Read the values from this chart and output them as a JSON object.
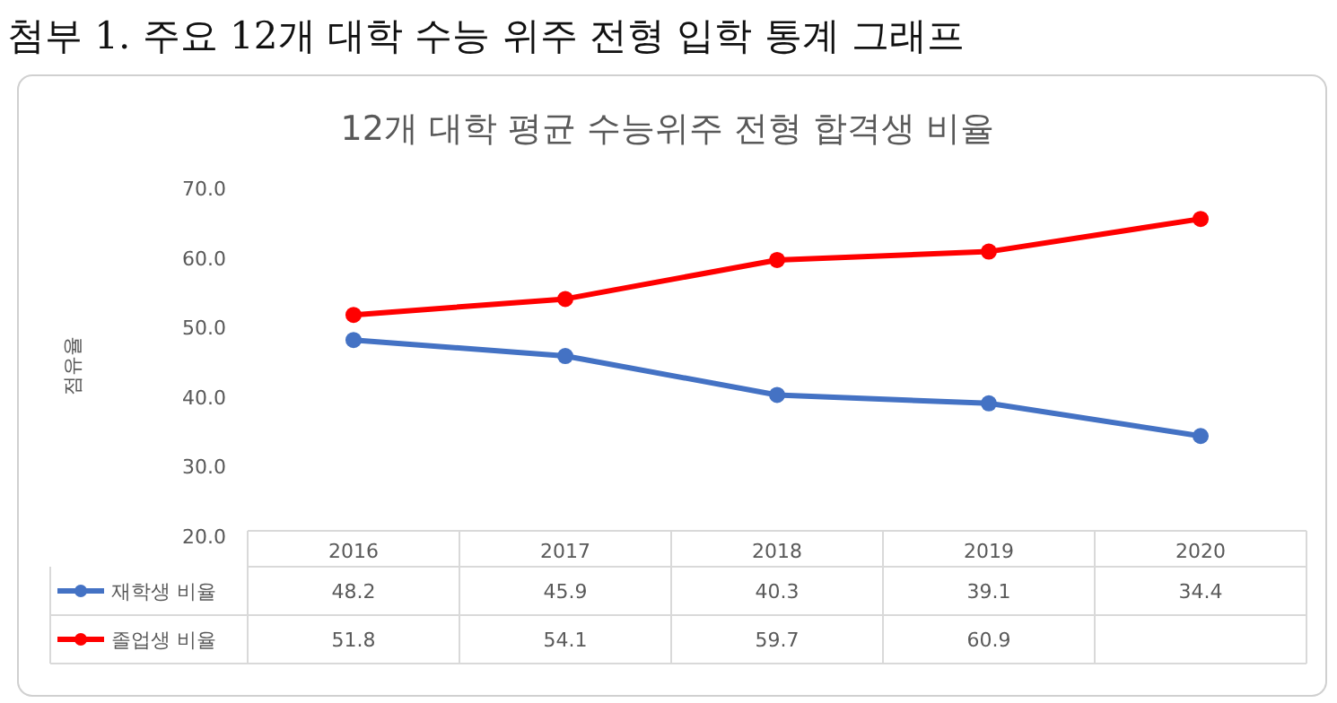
{
  "chart_data": {
    "type": "line",
    "title": "12개 대학 평균 수능위주 전형 합격생 비율",
    "subtitle": "첨부 1. 주요 12개 대학 수능 위주 전형 입학 통계 그래프",
    "ylabel": "점유율",
    "categories": [
      "2016",
      "2017",
      "2018",
      "2019",
      "2020"
    ],
    "series": [
      {
        "name": "재학생 비율",
        "color": "#4472c4",
        "values": [
          48.2,
          45.9,
          40.3,
          39.1,
          34.4
        ],
        "value_labels": [
          "48.2",
          "45.9",
          "40.3",
          "39.1",
          "34.4"
        ]
      },
      {
        "name": "졸업생 비율",
        "color": "#ff0000",
        "values": [
          51.8,
          54.1,
          59.7,
          60.9,
          65.6
        ],
        "value_labels": [
          "51.8",
          "54.1",
          "59.7",
          "60.9",
          null
        ]
      }
    ],
    "ylim": [
      20,
      70
    ],
    "yticks": [
      {
        "value": 20,
        "label": "20.0"
      },
      {
        "value": 30,
        "label": "30.0"
      },
      {
        "value": 40,
        "label": "40.0"
      },
      {
        "value": 50,
        "label": "50.0"
      },
      {
        "value": 60,
        "label": "60.0"
      },
      {
        "value": 70,
        "label": "70.0"
      }
    ],
    "marker": "circle",
    "line_style": "solid",
    "grid": false,
    "legend": "bottom"
  }
}
